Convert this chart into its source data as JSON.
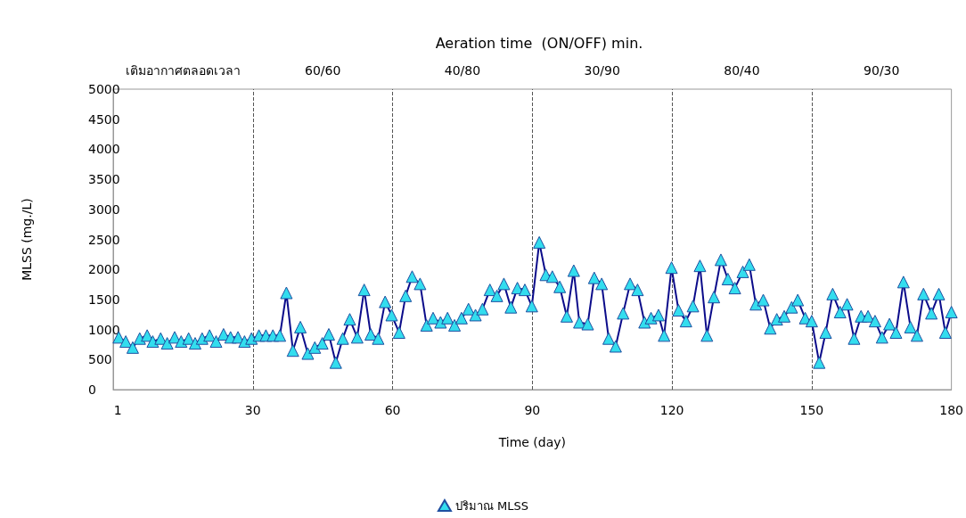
{
  "chart_data": {
    "type": "line",
    "title": "Aeration time  (ON/OFF) min.",
    "xlabel": "Time (day)",
    "ylabel": "MLSS (mg./L)",
    "x": [
      1.2,
      2.7,
      4.2,
      5.7,
      7.3,
      8.5,
      10.2,
      11.6,
      13.2,
      14.6,
      16.2,
      17.6,
      19.1,
      20.7,
      22.1,
      23.7,
      25.2,
      26.8,
      28.2,
      29.7,
      31.3,
      32.8,
      34.3,
      35.8,
      37.2,
      38.6,
      40.2,
      41.8,
      43.3,
      44.9,
      46.3,
      47.8,
      49.3,
      50.8,
      52.4,
      53.9,
      55.3,
      56.9,
      58.4,
      59.8,
      61.4,
      62.8,
      64.2,
      65.9,
      67.3,
      68.7,
      70.3,
      71.8,
      73.3,
      74.8,
      76.3,
      77.8,
      79.3,
      80.9,
      82.4,
      83.9,
      85.4,
      86.8,
      88.4,
      89.9,
      91.5,
      92.9,
      94.3,
      95.9,
      97.4,
      98.9,
      100.1,
      101.9,
      103.3,
      104.9,
      106.4,
      107.9,
      109.5,
      111,
      112.6,
      114.1,
      115.5,
      117.1,
      118.3,
      119.9,
      121.4,
      123,
      124.5,
      126,
      127.5,
      129,
      130.5,
      132,
      133.5,
      135.2,
      136.6,
      138,
      139.6,
      141.1,
      142.5,
      144.1,
      145.7,
      147,
      148.6,
      150,
      151.6,
      153,
      154.5,
      156.1,
      157.6,
      159.1,
      160.6,
      162.1,
      163.6,
      165.1,
      166.7,
      168.1,
      169.7,
      171.2,
      172.6,
      174,
      175.7,
      177.3,
      178.7,
      180
    ],
    "series": [
      {
        "name": "ปริมาณ MLSS",
        "color": "#33ddee",
        "values": [
          870,
          800,
          700,
          850,
          900,
          800,
          850,
          770,
          870,
          800,
          850,
          770,
          850,
          900,
          800,
          920,
          870,
          870,
          800,
          850,
          900,
          900,
          900,
          900,
          1610,
          650,
          1040,
          600,
          700,
          770,
          920,
          450,
          850,
          1170,
          870,
          1660,
          920,
          850,
          1460,
          1240,
          950,
          1560,
          1880,
          1760,
          1070,
          1190,
          1120,
          1190,
          1070,
          1190,
          1340,
          1240,
          1340,
          1660,
          1560,
          1760,
          1370,
          1690,
          1660,
          1390,
          2450,
          1910,
          1880,
          1710,
          1220,
          1980,
          1120,
          1090,
          1860,
          1760,
          850,
          720,
          1270,
          1760,
          1660,
          1120,
          1190,
          1240,
          900,
          2030,
          1320,
          1140,
          1390,
          2060,
          900,
          1540,
          2160,
          1840,
          1690,
          1960,
          2080,
          1420,
          1490,
          1020,
          1170,
          1220,
          1370,
          1490,
          1190,
          1140,
          450,
          950,
          1590,
          1290,
          1420,
          850,
          1220,
          1220,
          1140,
          870,
          1090,
          950,
          1790,
          1040,
          900,
          1590,
          1270,
          1590,
          950,
          1290
        ]
      }
    ],
    "xlim": [
      0,
      180
    ],
    "xticks": [
      1,
      30,
      60,
      90,
      120,
      150,
      180
    ],
    "ylim": [
      0,
      5000
    ],
    "yticks": [
      0,
      500,
      1000,
      1500,
      2000,
      2500,
      3000,
      3500,
      4000,
      4500,
      5000
    ],
    "ref_lines": [
      {
        "axis": "x",
        "value": 30,
        "line_style": "dashed"
      },
      {
        "axis": "x",
        "value": 60,
        "line_style": "dashed"
      },
      {
        "axis": "x",
        "value": 90,
        "line_style": "dashed"
      },
      {
        "axis": "x",
        "value": 120,
        "line_style": "dashed"
      },
      {
        "axis": "x",
        "value": 150,
        "line_style": "dashed"
      }
    ],
    "annotations": [
      "เติมอากาศตลอดเวลา",
      "60/60",
      "40/80",
      "30/90",
      "80/40",
      "90/30"
    ],
    "grid": false,
    "legend": "bottom",
    "marker": "triangle",
    "line_style": "solid"
  }
}
